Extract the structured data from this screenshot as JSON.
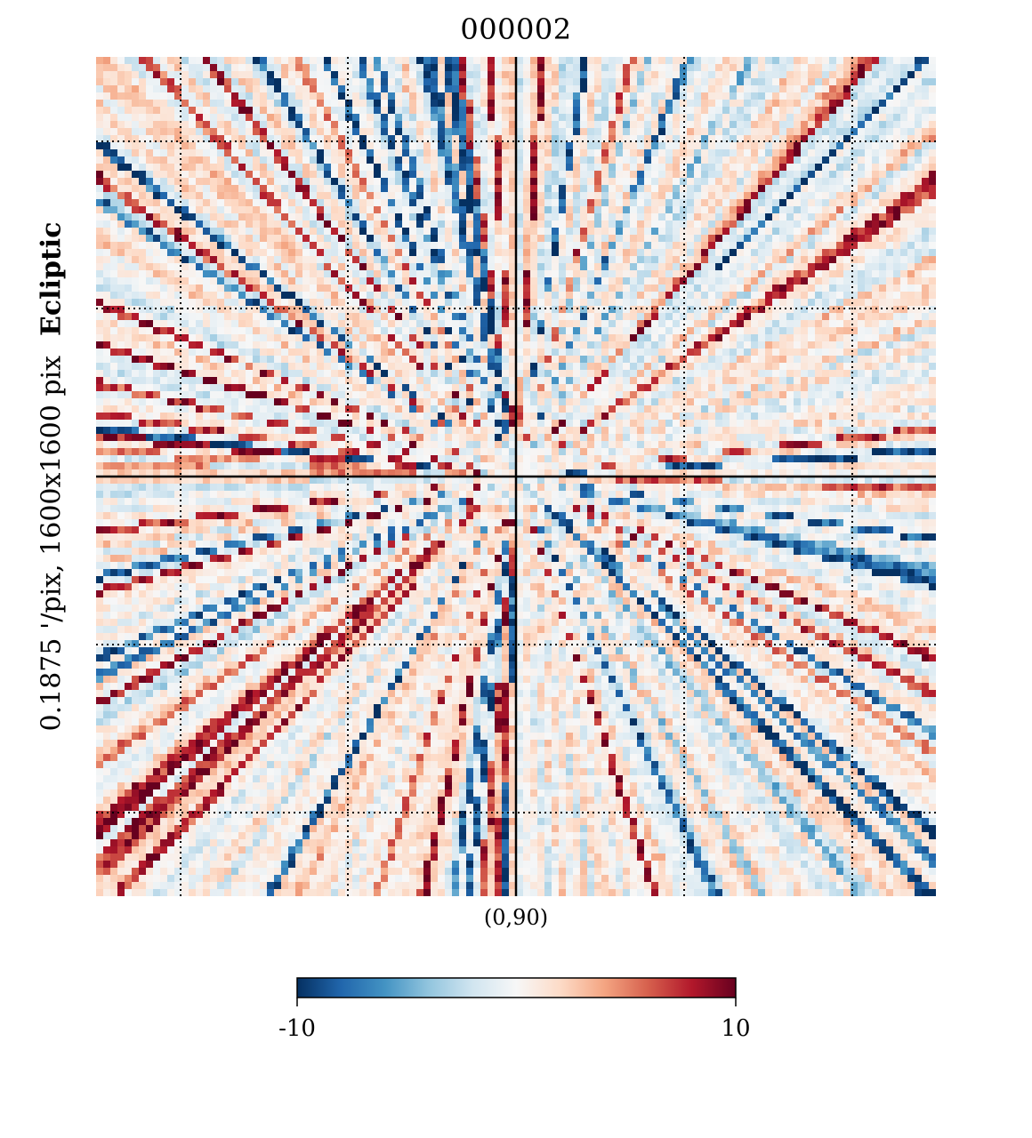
{
  "figure": {
    "title": "000002",
    "side_label_prefix": "0.1875 '/pix,   1600x1600 pix",
    "side_label_coord": "Ecliptic",
    "center_label": "(0,90)"
  },
  "colorbar": {
    "min_label": "-10",
    "max_label": "10",
    "colormap": "RdBu_r",
    "colors": [
      "#053061",
      "#2166ac",
      "#4393c3",
      "#92c5de",
      "#d1e5f0",
      "#f7f7f7",
      "#fddbc7",
      "#f4a582",
      "#d6604d",
      "#b2182b",
      "#67001f"
    ]
  },
  "chart_data": {
    "type": "heatmap",
    "title": "000002",
    "projection": "gnomonic",
    "coordinate_system": "Ecliptic",
    "resolution": "0.1875 '/pix",
    "image_size": "1600x1600 pix",
    "center": "(0,90)",
    "vmin": -10,
    "vmax": 10,
    "grid": true,
    "pattern": "radial streaks emanating from center, alternating positive (red) and negative (blue) values; strong lines along diagonals"
  }
}
